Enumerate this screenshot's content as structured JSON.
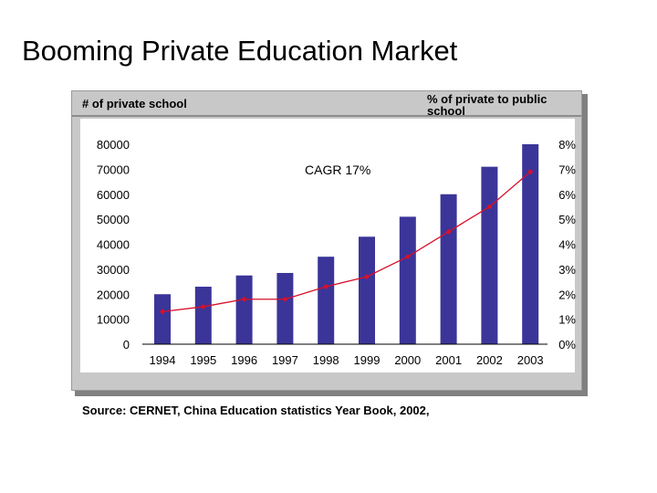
{
  "slide": {
    "title": "Booming Private Education Market",
    "left_header": "# of private school",
    "right_header": "% of private to public school",
    "source": "Source: CERNET, China Education statistics Year Book, 2002,"
  },
  "chart_data": {
    "type": "bar",
    "categories": [
      "1994",
      "1995",
      "1996",
      "1997",
      "1998",
      "1999",
      "2000",
      "2001",
      "2002",
      "2003"
    ],
    "series": [
      {
        "type": "bar",
        "axis": "left",
        "values": [
          20000,
          23000,
          27500,
          28500,
          35000,
          43000,
          51000,
          60000,
          71000,
          80000
        ]
      },
      {
        "type": "line",
        "axis": "right",
        "values": [
          1.3,
          1.5,
          1.8,
          1.8,
          2.3,
          2.7,
          3.5,
          4.5,
          5.5,
          6.9
        ]
      }
    ],
    "y_left": {
      "min": 0,
      "max": 80000,
      "ticks": [
        "0",
        "10000",
        "20000",
        "30000",
        "40000",
        "50000",
        "60000",
        "70000",
        "80000"
      ]
    },
    "y_right": {
      "min": 0,
      "max": 8,
      "ticks": [
        "0%",
        "1%",
        "2%",
        "3%",
        "4%",
        "5%",
        "6%",
        "7%",
        "8%"
      ]
    },
    "annotation": "CAGR 17%",
    "legend": "none",
    "grid": false,
    "colors": {
      "bar": "#3b3599",
      "line": "#d8102a",
      "plot_bg": "#ffffff",
      "frame_bg": "#c8c8c8"
    }
  }
}
